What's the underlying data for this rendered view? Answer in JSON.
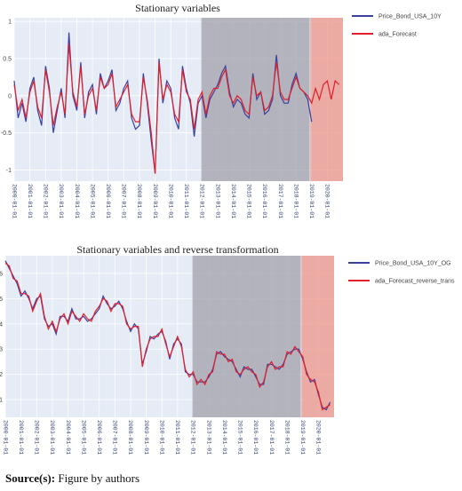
{
  "chart_data": [
    {
      "type": "line",
      "title": "Stationary variables",
      "x": [
        "2000-01-01",
        "2000-04-01",
        "2000-07-01",
        "2000-10-01",
        "2001-01-01",
        "2001-04-01",
        "2001-07-01",
        "2001-10-01",
        "2002-01-01",
        "2002-04-01",
        "2002-07-01",
        "2002-10-01",
        "2003-01-01",
        "2003-04-01",
        "2003-07-01",
        "2003-10-01",
        "2004-01-01",
        "2004-04-01",
        "2004-07-01",
        "2004-10-01",
        "2005-01-01",
        "2005-04-01",
        "2005-07-01",
        "2005-10-01",
        "2006-01-01",
        "2006-04-01",
        "2006-07-01",
        "2006-10-01",
        "2007-01-01",
        "2007-04-01",
        "2007-07-01",
        "2007-10-01",
        "2008-01-01",
        "2008-04-01",
        "2008-07-01",
        "2008-10-01",
        "2009-01-01",
        "2009-04-01",
        "2009-07-01",
        "2009-10-01",
        "2010-01-01",
        "2010-04-01",
        "2010-07-01",
        "2010-10-01",
        "2011-01-01",
        "2011-04-01",
        "2011-07-01",
        "2011-10-01",
        "2012-01-01",
        "2012-04-01",
        "2012-07-01",
        "2012-10-01",
        "2013-01-01",
        "2013-04-01",
        "2013-07-01",
        "2013-10-01",
        "2014-01-01",
        "2014-04-01",
        "2014-07-01",
        "2014-10-01",
        "2015-01-01",
        "2015-04-01",
        "2015-07-01",
        "2015-10-01",
        "2016-01-01",
        "2016-04-01",
        "2016-07-01",
        "2016-10-01",
        "2017-01-01",
        "2017-04-01",
        "2017-07-01",
        "2017-10-01",
        "2018-01-01",
        "2018-04-01",
        "2018-07-01",
        "2018-10-01",
        "2019-01-01",
        "2019-04-01",
        "2019-07-01",
        "2019-10-01",
        "2020-01-01",
        "2020-04-01",
        "2020-07-01",
        "2020-10-01"
      ],
      "xlim": [
        "2000-01-01",
        "2020-12-31"
      ],
      "xticks": [
        "2000-01-01",
        "2001-01-01",
        "2002-01-01",
        "2003-01-01",
        "2004-01-01",
        "2005-01-01",
        "2006-01-01",
        "2007-01-01",
        "2008-01-01",
        "2009-01-01",
        "2010-01-01",
        "2011-01-01",
        "2012-01-01",
        "2013-01-01",
        "2014-01-01",
        "2015-01-01",
        "2016-01-01",
        "2017-01-01",
        "2018-01-01",
        "2019-01-01",
        "2020-01-01"
      ],
      "ylim": [
        -1.15,
        1.05
      ],
      "yticks": [
        -1,
        -0.5,
        0,
        0.5,
        1
      ],
      "grid": true,
      "shaded_regions": [
        {
          "x0": "2011-12-15",
          "x1": "2018-11-15",
          "color": "#a0a0a8"
        },
        {
          "x0": "2018-12-01",
          "x1": "2020-12-31",
          "color": "#ec9488"
        }
      ],
      "series": [
        {
          "name": "Price_Bond_USA_10Y",
          "color": "#3a3fa0",
          "values": [
            0.2,
            -0.3,
            -0.1,
            -0.35,
            0.1,
            0.25,
            -0.2,
            -0.4,
            0.4,
            0.1,
            -0.5,
            -0.2,
            0.1,
            -0.3,
            0.85,
            0.0,
            -0.2,
            0.45,
            -0.3,
            0.05,
            0.15,
            -0.25,
            0.3,
            0.1,
            0.2,
            0.35,
            -0.2,
            -0.1,
            0.1,
            0.2,
            -0.3,
            -0.45,
            -0.4,
            0.3,
            -0.1,
            -0.6,
            -1.05,
            0.5,
            -0.1,
            0.2,
            0.1,
            -0.3,
            -0.45,
            0.4,
            0.1,
            -0.1,
            -0.55,
            -0.1,
            0.0,
            -0.3,
            -0.05,
            0.05,
            0.15,
            0.3,
            0.4,
            0.05,
            -0.15,
            -0.05,
            -0.1,
            -0.25,
            -0.3,
            0.3,
            -0.05,
            0.05,
            -0.25,
            -0.2,
            -0.05,
            0.55,
            0.0,
            -0.1,
            -0.1,
            0.15,
            0.3,
            0.1,
            0.05,
            -0.05,
            -0.35,
            null,
            null,
            null,
            null,
            null,
            null,
            null
          ]
        },
        {
          "name": "ada_Forecast",
          "color": "#e0202a",
          "values": [
            0.15,
            -0.2,
            -0.05,
            -0.3,
            0.05,
            0.2,
            -0.15,
            -0.3,
            0.35,
            0.05,
            -0.4,
            -0.15,
            0.05,
            -0.25,
            0.7,
            0.05,
            -0.15,
            0.4,
            -0.25,
            0.0,
            0.1,
            -0.2,
            0.25,
            0.1,
            0.15,
            0.3,
            -0.15,
            -0.05,
            0.05,
            0.15,
            -0.25,
            -0.35,
            -0.35,
            0.25,
            -0.05,
            -0.5,
            -1.05,
            0.45,
            -0.05,
            0.15,
            0.05,
            -0.25,
            -0.35,
            0.35,
            0.05,
            -0.05,
            -0.45,
            -0.05,
            0.05,
            -0.25,
            0.0,
            0.1,
            0.1,
            0.25,
            0.35,
            0.0,
            -0.1,
            0.0,
            -0.05,
            -0.2,
            -0.25,
            0.25,
            0.0,
            0.05,
            -0.2,
            -0.15,
            0.0,
            0.45,
            0.05,
            -0.05,
            -0.05,
            0.1,
            0.25,
            0.1,
            0.05,
            0.0,
            -0.1,
            0.1,
            -0.05,
            0.15,
            0.2,
            -0.05,
            0.2,
            0.15
          ]
        }
      ]
    },
    {
      "type": "line",
      "title": "Stationary variables and reverse transformation",
      "x": [
        "2000-01-01",
        "2000-04-01",
        "2000-07-01",
        "2000-10-01",
        "2001-01-01",
        "2001-04-01",
        "2001-07-01",
        "2001-10-01",
        "2002-01-01",
        "2002-04-01",
        "2002-07-01",
        "2002-10-01",
        "2003-01-01",
        "2003-04-01",
        "2003-07-01",
        "2003-10-01",
        "2004-01-01",
        "2004-04-01",
        "2004-07-01",
        "2004-10-01",
        "2005-01-01",
        "2005-04-01",
        "2005-07-01",
        "2005-10-01",
        "2006-01-01",
        "2006-04-01",
        "2006-07-01",
        "2006-10-01",
        "2007-01-01",
        "2007-04-01",
        "2007-07-01",
        "2007-10-01",
        "2008-01-01",
        "2008-04-01",
        "2008-07-01",
        "2008-10-01",
        "2009-01-01",
        "2009-04-01",
        "2009-07-01",
        "2009-10-01",
        "2010-01-01",
        "2010-04-01",
        "2010-07-01",
        "2010-10-01",
        "2011-01-01",
        "2011-04-01",
        "2011-07-01",
        "2011-10-01",
        "2012-01-01",
        "2012-04-01",
        "2012-07-01",
        "2012-10-01",
        "2013-01-01",
        "2013-04-01",
        "2013-07-01",
        "2013-10-01",
        "2014-01-01",
        "2014-04-01",
        "2014-07-01",
        "2014-10-01",
        "2015-01-01",
        "2015-04-01",
        "2015-07-01",
        "2015-10-01",
        "2016-01-01",
        "2016-04-01",
        "2016-07-01",
        "2016-10-01",
        "2017-01-01",
        "2017-04-01",
        "2017-07-01",
        "2017-10-01",
        "2018-01-01",
        "2018-04-01",
        "2018-07-01",
        "2018-10-01",
        "2019-01-01",
        "2019-04-01",
        "2019-07-01",
        "2019-10-01",
        "2020-01-01",
        "2020-04-01",
        "2020-07-01",
        "2020-10-01"
      ],
      "xlim": [
        "2000-01-01",
        "2020-12-31"
      ],
      "xticks": [
        "2000-01-01",
        "2001-01-01",
        "2002-01-01",
        "2003-01-01",
        "2004-01-01",
        "2005-01-01",
        "2006-01-01",
        "2007-01-01",
        "2008-01-01",
        "2009-01-01",
        "2010-01-01",
        "2011-01-01",
        "2012-01-01",
        "2013-01-01",
        "2014-01-01",
        "2015-01-01",
        "2016-01-01",
        "2017-01-01",
        "2018-01-01",
        "2019-01-01",
        "2020-01-01"
      ],
      "ylim": [
        0.3,
        6.7
      ],
      "yticks": [
        1,
        2,
        3,
        4,
        5,
        6
      ],
      "grid": true,
      "shaded_regions": [
        {
          "x0": "2011-12-15",
          "x1": "2018-11-15",
          "color": "#a0a0a8"
        },
        {
          "x0": "2018-12-01",
          "x1": "2020-12-31",
          "color": "#ec9488"
        }
      ],
      "series": [
        {
          "name": "Price_Bond_USA_10Y_OG",
          "color": "#3a3fa0",
          "values": [
            6.5,
            6.2,
            5.9,
            5.6,
            5.1,
            5.3,
            5.0,
            4.6,
            5.0,
            5.1,
            4.2,
            3.9,
            4.0,
            3.6,
            4.3,
            4.3,
            4.1,
            4.6,
            4.2,
            4.2,
            4.3,
            4.1,
            4.2,
            4.4,
            4.6,
            5.1,
            4.8,
            4.6,
            4.7,
            4.9,
            4.6,
            4.1,
            3.7,
            4.0,
            3.8,
            2.4,
            2.9,
            3.5,
            3.4,
            3.6,
            3.7,
            3.3,
            2.6,
            3.2,
            3.4,
            3.2,
            2.1,
            2.0,
            2.0,
            1.7,
            1.7,
            1.7,
            1.9,
            2.2,
            2.8,
            2.9,
            2.7,
            2.6,
            2.5,
            2.2,
            1.9,
            2.3,
            2.2,
            2.2,
            1.9,
            1.6,
            1.6,
            2.4,
            2.4,
            2.3,
            2.2,
            2.4,
            2.8,
            2.9,
            3.0,
            3.0,
            2.6,
            2.1,
            1.7,
            1.8,
            1.2,
            0.7,
            0.6,
            0.9
          ]
        },
        {
          "name": "ada_Forecast_reverse_trans",
          "color": "#e0202a",
          "values": [
            6.4,
            6.3,
            5.8,
            5.7,
            5.2,
            5.2,
            5.1,
            4.5,
            4.9,
            5.2,
            4.3,
            3.8,
            4.1,
            3.7,
            4.2,
            4.4,
            4.0,
            4.5,
            4.3,
            4.1,
            4.4,
            4.2,
            4.1,
            4.5,
            4.7,
            5.0,
            4.9,
            4.5,
            4.8,
            4.8,
            4.7,
            4.0,
            3.8,
            3.9,
            3.9,
            2.3,
            3.0,
            3.4,
            3.5,
            3.5,
            3.8,
            3.2,
            2.7,
            3.1,
            3.5,
            3.1,
            2.2,
            1.9,
            2.1,
            1.6,
            1.8,
            1.6,
            2.0,
            2.1,
            2.9,
            2.8,
            2.8,
            2.5,
            2.6,
            2.1,
            2.0,
            2.2,
            2.3,
            2.1,
            2.0,
            1.5,
            1.7,
            2.3,
            2.5,
            2.2,
            2.3,
            2.3,
            2.9,
            2.8,
            3.1,
            2.9,
            2.7,
            2.0,
            1.8,
            1.7,
            1.3,
            0.6,
            0.7,
            0.8
          ]
        }
      ]
    }
  ],
  "source": {
    "label": "Source(s):",
    "text": "Figure by authors"
  }
}
